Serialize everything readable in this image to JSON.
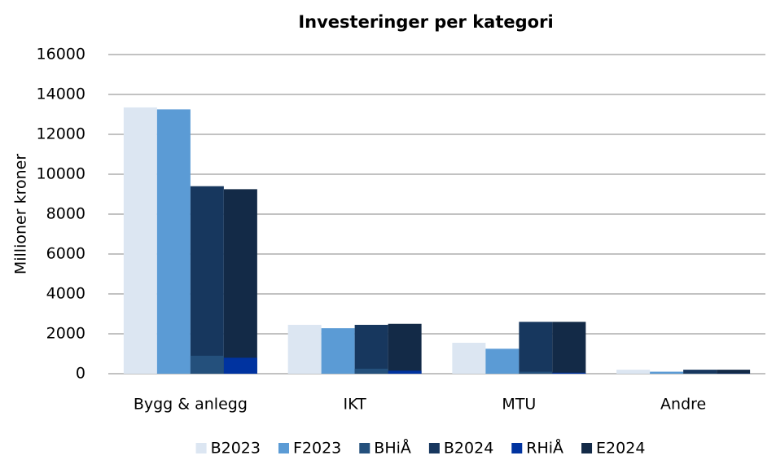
{
  "chart_data": {
    "type": "bar",
    "title": "Investeringer per kategori",
    "y_label": "Millioner kroner",
    "categories": [
      "Bygg & anlegg",
      "IKT",
      "MTU",
      "Andre"
    ],
    "series": [
      {
        "name": "B2023",
        "color": "#dce6f2",
        "values": [
          13350,
          2450,
          1550,
          200
        ]
      },
      {
        "name": "F2023",
        "color": "#5b9bd5",
        "values": [
          13250,
          2280,
          1250,
          100
        ]
      },
      {
        "name": "BHiÅ",
        "color": "#24507c",
        "values": [
          900,
          250,
          100,
          20
        ]
      },
      {
        "name": "B2024",
        "color": "#17375e",
        "values": [
          9400,
          2450,
          2600,
          200
        ]
      },
      {
        "name": "RHiÅ",
        "color": "#0033a0",
        "values": [
          800,
          150,
          50,
          10
        ]
      },
      {
        "name": "E2024",
        "color": "#132a47",
        "values": [
          9250,
          2500,
          2600,
          200
        ]
      }
    ],
    "ylim": [
      0,
      16000
    ],
    "yticks": [
      0,
      2000,
      4000,
      6000,
      8000,
      10000,
      12000,
      14000,
      16000
    ],
    "grid": true
  }
}
